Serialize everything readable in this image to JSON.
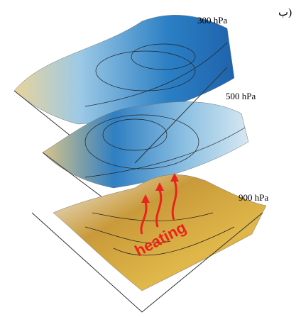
{
  "panel_label": "(ب",
  "layers": [
    {
      "label": "300 hPa"
    },
    {
      "label": "500 hPa"
    },
    {
      "label": "900 hPa"
    }
  ],
  "annotation": "heating"
}
